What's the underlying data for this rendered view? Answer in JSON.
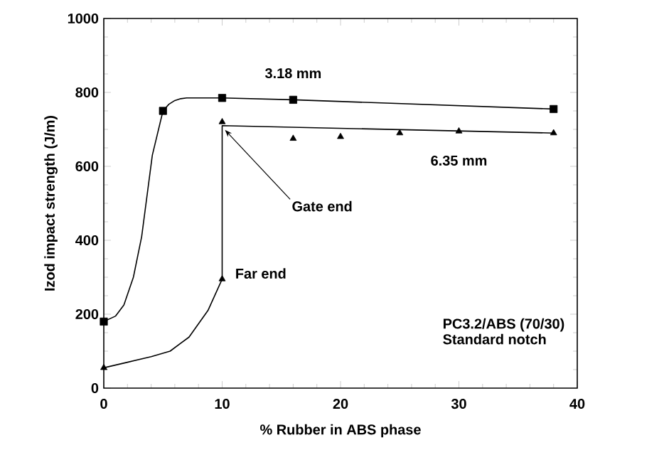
{
  "chart_data": {
    "type": "line",
    "xlabel": "% Rubber in ABS phase",
    "ylabel": "Izod impact strength (J/m)",
    "xlim": [
      0,
      40
    ],
    "ylim": [
      0,
      1000
    ],
    "xticks": [
      0,
      10,
      20,
      30,
      40
    ],
    "yticks": [
      0,
      200,
      400,
      600,
      800,
      1000
    ],
    "grid": false,
    "series": [
      {
        "color": "#000000",
        "x": [
          0,
          1,
          1.7,
          2.5,
          3.2,
          4.1,
          5,
          5.5,
          6,
          6.5,
          7,
          10,
          16,
          38
        ],
        "values": [
          180,
          195,
          225,
          300,
          410,
          630,
          750,
          768,
          778,
          783,
          785,
          785,
          780,
          755
        ]
      },
      {
        "type": "scatter",
        "marker": "square",
        "color": "#000000",
        "x": [
          0,
          5,
          10,
          16,
          38
        ],
        "values": [
          180,
          750,
          785,
          780,
          755
        ]
      },
      {
        "color": "#000000",
        "x": [
          0,
          2,
          4,
          5.6,
          7.2,
          8.8,
          10
        ],
        "values": [
          55,
          70,
          85,
          100,
          138,
          210,
          295
        ]
      },
      {
        "color": "#000000",
        "x": [
          10,
          10,
          38
        ],
        "values": [
          295,
          710,
          690
        ]
      },
      {
        "type": "scatter",
        "marker": "triangle",
        "color": "#000000",
        "x": [
          0,
          10,
          10,
          16,
          20,
          25,
          30,
          38
        ],
        "values": [
          55,
          295,
          720,
          675,
          680,
          690,
          695,
          690
        ]
      }
    ],
    "annotations": [
      {
        "text": "3.18 mm",
        "x": 16,
        "y": 780
      },
      {
        "text": "6.35 mm",
        "x": 30,
        "y": 695
      },
      {
        "text": "Gate end",
        "x": 10,
        "y": 710
      },
      {
        "text": "Far end",
        "x": 10,
        "y": 295
      },
      "PC3.2/ABS (70/30)",
      "Standard notch"
    ]
  }
}
